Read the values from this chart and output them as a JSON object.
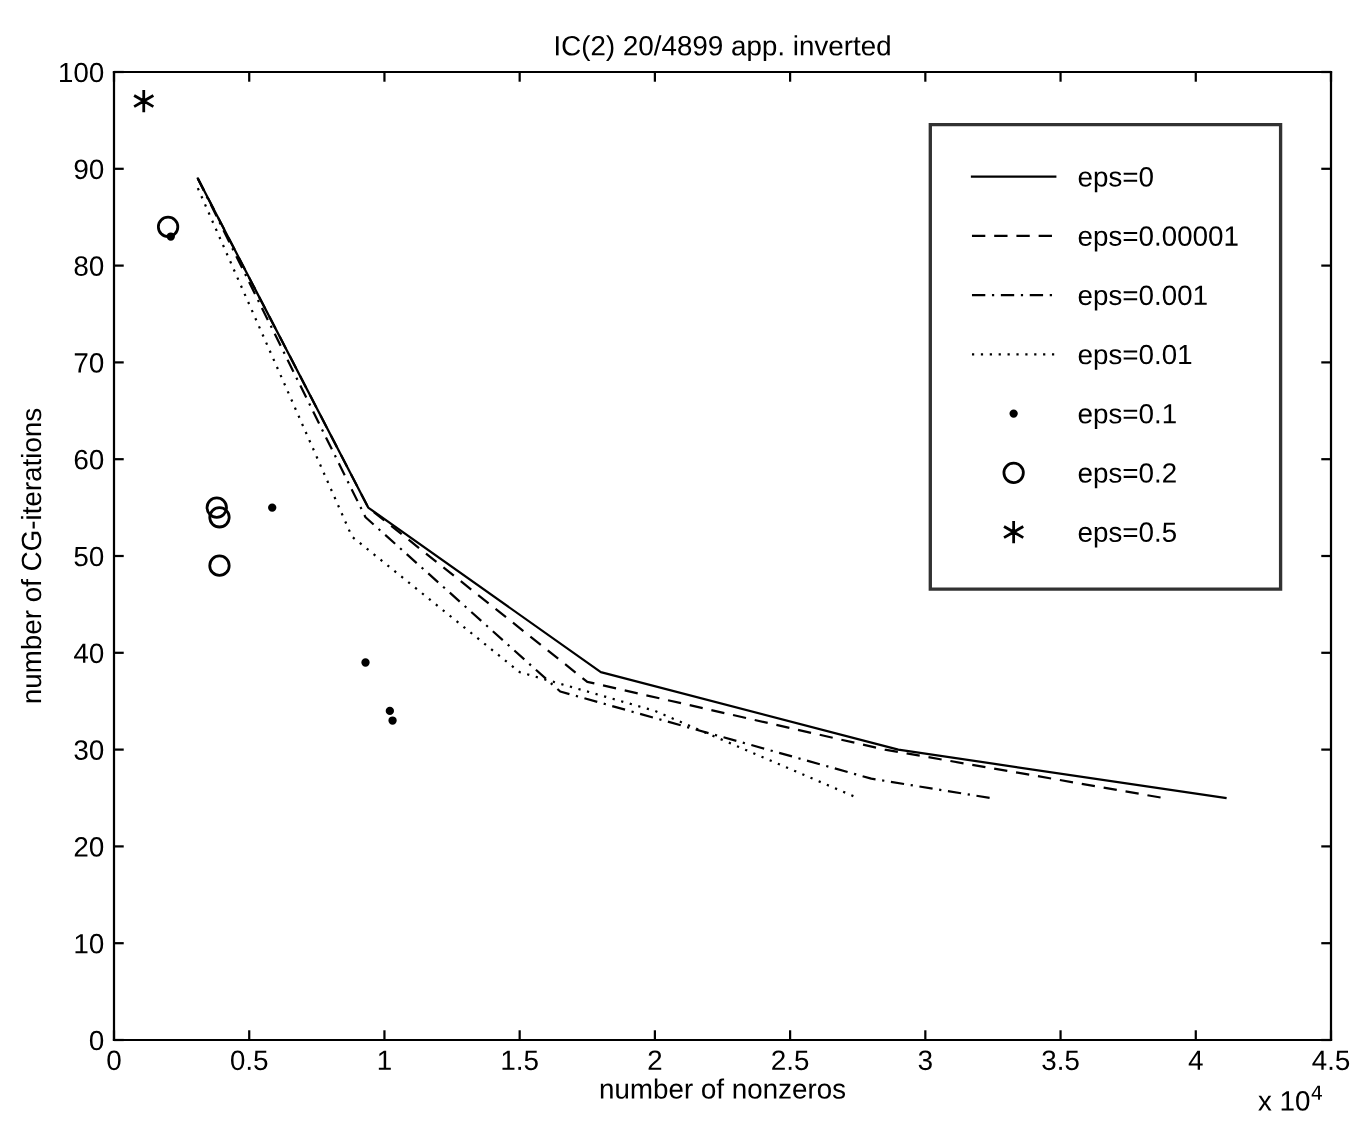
{
  "chart_data": {
    "type": "line",
    "title": "IC(2) 20/4899 app. inverted",
    "xlabel": "number of nonzeros",
    "ylabel": "number of CG-iterations",
    "xlim": [
      0,
      4.5
    ],
    "xticks": [
      0,
      0.5,
      1,
      1.5,
      2,
      2.5,
      3,
      3.5,
      4,
      4.5
    ],
    "ylim": [
      0,
      100
    ],
    "yticks": [
      0,
      10,
      20,
      30,
      40,
      50,
      60,
      70,
      80,
      90,
      100
    ],
    "annotations": [
      "x 10$^{4}$"
    ],
    "grid": false,
    "legend": "top right",
    "series": [
      {
        "name": "eps=0",
        "color": "#000000",
        "line_style": "solid",
        "x": [
          0.31,
          0.94,
          1.8,
          2.9,
          4.11
        ],
        "values": [
          89,
          55,
          38,
          30,
          25
        ]
      },
      {
        "name": "eps=0.00001",
        "color": "#000000",
        "line_style": "dashed",
        "x": [
          0.31,
          0.94,
          1.75,
          2.85,
          3.88
        ],
        "values": [
          89,
          55,
          37,
          30,
          25
        ]
      },
      {
        "name": "eps=0.001",
        "color": "#000000",
        "line_style": "dashdot",
        "x": [
          0.31,
          0.93,
          1.65,
          2.8,
          3.24
        ],
        "values": [
          89,
          54,
          36,
          27,
          25
        ]
      },
      {
        "name": "eps=0.01",
        "color": "#000000",
        "line_style": "dotted",
        "x": [
          0.31,
          0.88,
          1.5,
          2.0,
          2.75
        ],
        "values": [
          88,
          52,
          38,
          34,
          25
        ]
      },
      {
        "name": "eps=0.1",
        "type": "scatter",
        "color": "#000000",
        "marker": "point",
        "x": [
          0.21,
          0.585,
          0.93,
          1.02,
          1.03
        ],
        "values": [
          83,
          55,
          39,
          34,
          33
        ]
      },
      {
        "name": "eps=0.2",
        "type": "scatter",
        "color": "#000000",
        "marker": "circle",
        "x": [
          0.2,
          0.38,
          0.39,
          0.39
        ],
        "values": [
          84,
          55,
          54,
          49
        ]
      },
      {
        "name": "eps=0.5",
        "type": "scatter",
        "color": "#000000",
        "marker": "cross",
        "x": [
          0.11
        ],
        "values": [
          97
        ]
      }
    ]
  }
}
